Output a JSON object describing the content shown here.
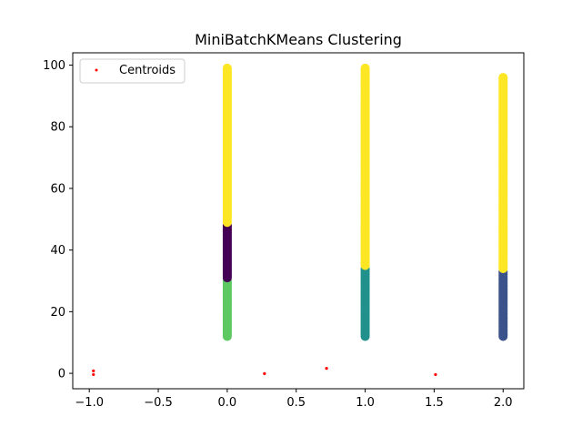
{
  "chart_data": {
    "type": "scatter",
    "title": "MiniBatchKMeans Clustering",
    "xlabel": "",
    "ylabel": "",
    "xlim": [
      -1.12,
      2.15
    ],
    "ylim": [
      -5,
      104
    ],
    "x_ticks": [
      -1.0,
      -0.5,
      0.0,
      0.5,
      1.0,
      1.5,
      2.0
    ],
    "x_tick_labels": [
      "−1.0",
      "−0.5",
      "0.0",
      "0.5",
      "1.0",
      "1.5",
      "2.0"
    ],
    "y_ticks": [
      0,
      20,
      40,
      60,
      80,
      100
    ],
    "y_tick_labels": [
      "0",
      "20",
      "40",
      "60",
      "80",
      "100"
    ],
    "grid": false,
    "legend": {
      "position": "top-left",
      "entries": [
        "Centroids"
      ]
    },
    "clusters": [
      {
        "x": 0.0,
        "y_range": [
          12,
          30
        ],
        "color": "#5ec962"
      },
      {
        "x": 0.0,
        "y_range": [
          31,
          48
        ],
        "color": "#440154"
      },
      {
        "x": 0.0,
        "y_range": [
          49,
          99
        ],
        "color": "#fde725"
      },
      {
        "x": 1.0,
        "y_range": [
          12,
          34
        ],
        "color": "#21918c"
      },
      {
        "x": 1.0,
        "y_range": [
          35,
          99
        ],
        "color": "#fde725"
      },
      {
        "x": 2.0,
        "y_range": [
          12,
          33
        ],
        "color": "#3b528b"
      },
      {
        "x": 2.0,
        "y_range": [
          34,
          96
        ],
        "color": "#fde725"
      }
    ],
    "centroids": {
      "name": "Centroids",
      "color": "#ff0000",
      "points": [
        {
          "x": -0.97,
          "y": 0.8
        },
        {
          "x": -0.97,
          "y": -0.4
        },
        {
          "x": 0.27,
          "y": -0.1
        },
        {
          "x": 0.72,
          "y": 1.6
        },
        {
          "x": 1.51,
          "y": -0.4
        }
      ]
    }
  }
}
